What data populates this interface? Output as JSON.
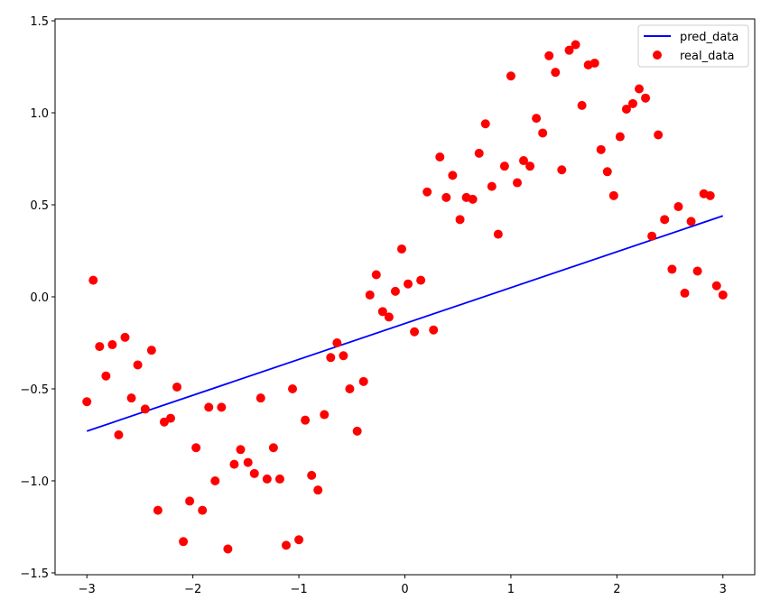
{
  "chart_data": {
    "type": "scatter",
    "title": "",
    "xlabel": "",
    "ylabel": "",
    "xlim": [
      -3.3,
      3.3
    ],
    "ylim": [
      -1.51,
      1.51
    ],
    "xticks": [
      -3,
      -2,
      -1,
      0,
      1,
      2,
      3
    ],
    "xtick_labels": [
      "−3",
      "−2",
      "−1",
      "0",
      "1",
      "2",
      "3"
    ],
    "yticks": [
      -1.5,
      -1.0,
      -0.5,
      0.0,
      0.5,
      1.0,
      1.5
    ],
    "ytick_labels": [
      "−1.5",
      "−1.0",
      "−0.5",
      "0.0",
      "0.5",
      "1.0",
      "1.5"
    ],
    "grid": false,
    "legend": {
      "position": "top-right",
      "entries": [
        {
          "label": "pred_data",
          "kind": "line",
          "color": "#0000ff"
        },
        {
          "label": "real_data",
          "kind": "marker",
          "color": "#ff0000"
        }
      ]
    },
    "series": [
      {
        "name": "pred_data",
        "kind": "line",
        "color": "#0000ff",
        "x": [
          -3,
          3
        ],
        "y": [
          -0.73,
          0.44
        ]
      },
      {
        "name": "real_data",
        "kind": "scatter",
        "color": "#ff0000",
        "x": [
          -3.0,
          -2.94,
          -2.88,
          -2.82,
          -2.76,
          -2.7,
          -2.64,
          -2.58,
          -2.52,
          -2.45,
          -2.39,
          -2.33,
          -2.27,
          -2.21,
          -2.15,
          -2.09,
          -2.03,
          -1.97,
          -1.91,
          -1.85,
          -1.79,
          -1.73,
          -1.67,
          -1.61,
          -1.55,
          -1.48,
          -1.42,
          -1.36,
          -1.3,
          -1.24,
          -1.18,
          -1.12,
          -1.06,
          -1.0,
          -0.94,
          -0.88,
          -0.82,
          -0.76,
          -0.7,
          -0.64,
          -0.58,
          -0.52,
          -0.45,
          -0.39,
          -0.33,
          -0.27,
          -0.21,
          -0.15,
          -0.09,
          -0.03,
          0.03,
          0.09,
          0.15,
          0.21,
          0.27,
          0.33,
          0.39,
          0.45,
          0.52,
          0.58,
          0.64,
          0.7,
          0.76,
          0.82,
          0.88,
          0.94,
          1.0,
          1.06,
          1.12,
          1.18,
          1.24,
          1.3,
          1.36,
          1.42,
          1.48,
          1.55,
          1.61,
          1.67,
          1.73,
          1.79,
          1.85,
          1.91,
          1.97,
          2.03,
          2.09,
          2.15,
          2.21,
          2.27,
          2.33,
          2.39,
          2.45,
          2.52,
          2.58,
          2.64,
          2.7,
          2.76,
          2.82,
          2.88,
          2.94,
          3.0
        ],
        "y": [
          -0.57,
          0.09,
          -0.27,
          -0.43,
          -0.26,
          -0.75,
          -0.22,
          -0.55,
          -0.37,
          -0.61,
          -0.29,
          -1.16,
          -0.68,
          -0.66,
          -0.49,
          -1.33,
          -1.11,
          -0.82,
          -1.16,
          -0.6,
          -1.0,
          -0.6,
          -1.37,
          -0.91,
          -0.83,
          -0.9,
          -0.96,
          -0.55,
          -0.99,
          -0.82,
          -0.99,
          -1.35,
          -0.5,
          -1.32,
          -0.67,
          -0.97,
          -1.05,
          -0.64,
          -0.33,
          -0.25,
          -0.32,
          -0.5,
          -0.73,
          -0.46,
          0.01,
          0.12,
          -0.08,
          -0.11,
          0.03,
          0.26,
          0.07,
          -0.19,
          0.09,
          0.57,
          -0.18,
          0.76,
          0.54,
          0.66,
          0.42,
          0.54,
          0.53,
          0.78,
          0.94,
          0.6,
          0.34,
          0.71,
          1.2,
          0.62,
          0.74,
          0.71,
          0.97,
          0.89,
          1.31,
          1.22,
          0.69,
          1.34,
          1.37,
          1.04,
          1.26,
          1.27,
          0.8,
          0.68,
          0.55,
          0.87,
          1.02,
          1.05,
          1.13,
          1.08,
          0.33,
          0.88,
          0.42,
          0.15,
          0.49,
          0.02,
          0.41,
          0.14,
          0.56,
          0.55,
          0.06,
          0.01
        ]
      }
    ]
  }
}
